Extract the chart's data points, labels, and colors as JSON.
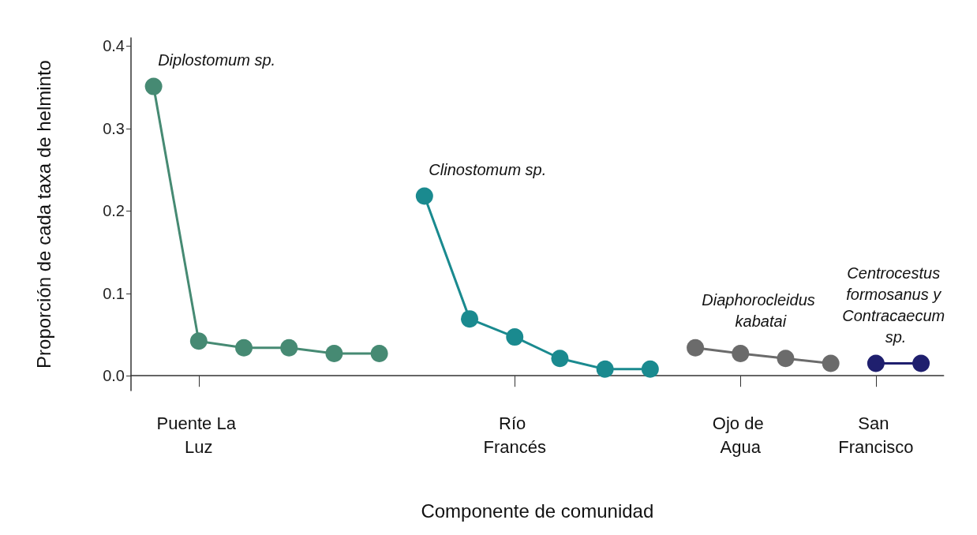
{
  "chart_data": {
    "type": "line",
    "xlabel": "Componente de comunidad",
    "ylabel": "Proporción de cada taxa de helminto",
    "categories": [
      null,
      "Puente La Luz",
      null,
      null,
      null,
      null,
      null,
      null,
      "Río Francés",
      null,
      null,
      null,
      null,
      "Ojo de Agua",
      null,
      null,
      "San Francisco",
      null
    ],
    "ylim": [
      -0.018,
      0.41
    ],
    "yticks": [
      {
        "value": 0,
        "label": "0.0"
      },
      0.1,
      0.2,
      0.3,
      0.4
    ],
    "grid": false,
    "marker": "circle",
    "line_style": "solid",
    "series": [
      {
        "color": "#468a73",
        "values": [
          0.351,
          0.042,
          0.034,
          0.034,
          0.027,
          0.027,
          null,
          null,
          null,
          null,
          null,
          null,
          null,
          null,
          null,
          null,
          null,
          null
        ]
      },
      {
        "color": "#1a8a8f",
        "values": [
          null,
          null,
          null,
          null,
          null,
          null,
          0.218,
          0.069,
          0.047,
          0.021,
          0.008,
          0.008,
          null,
          null,
          null,
          null,
          null,
          null
        ]
      },
      {
        "color": "#6b6b6b",
        "values": [
          null,
          null,
          null,
          null,
          null,
          null,
          null,
          null,
          null,
          null,
          null,
          null,
          0.034,
          0.027,
          0.021,
          0.015,
          null,
          null
        ]
      },
      {
        "color": "#1f1f6e",
        "values": [
          null,
          null,
          null,
          null,
          null,
          null,
          null,
          null,
          null,
          null,
          null,
          null,
          null,
          null,
          null,
          null,
          0.015,
          0.015
        ]
      }
    ],
    "annotations": [
      "Diplostomum sp.",
      "Clinostomum sp.",
      "Diaphorocleidus kabatai",
      "Centrocestus formosanus y Contracaecum sp."
    ]
  }
}
